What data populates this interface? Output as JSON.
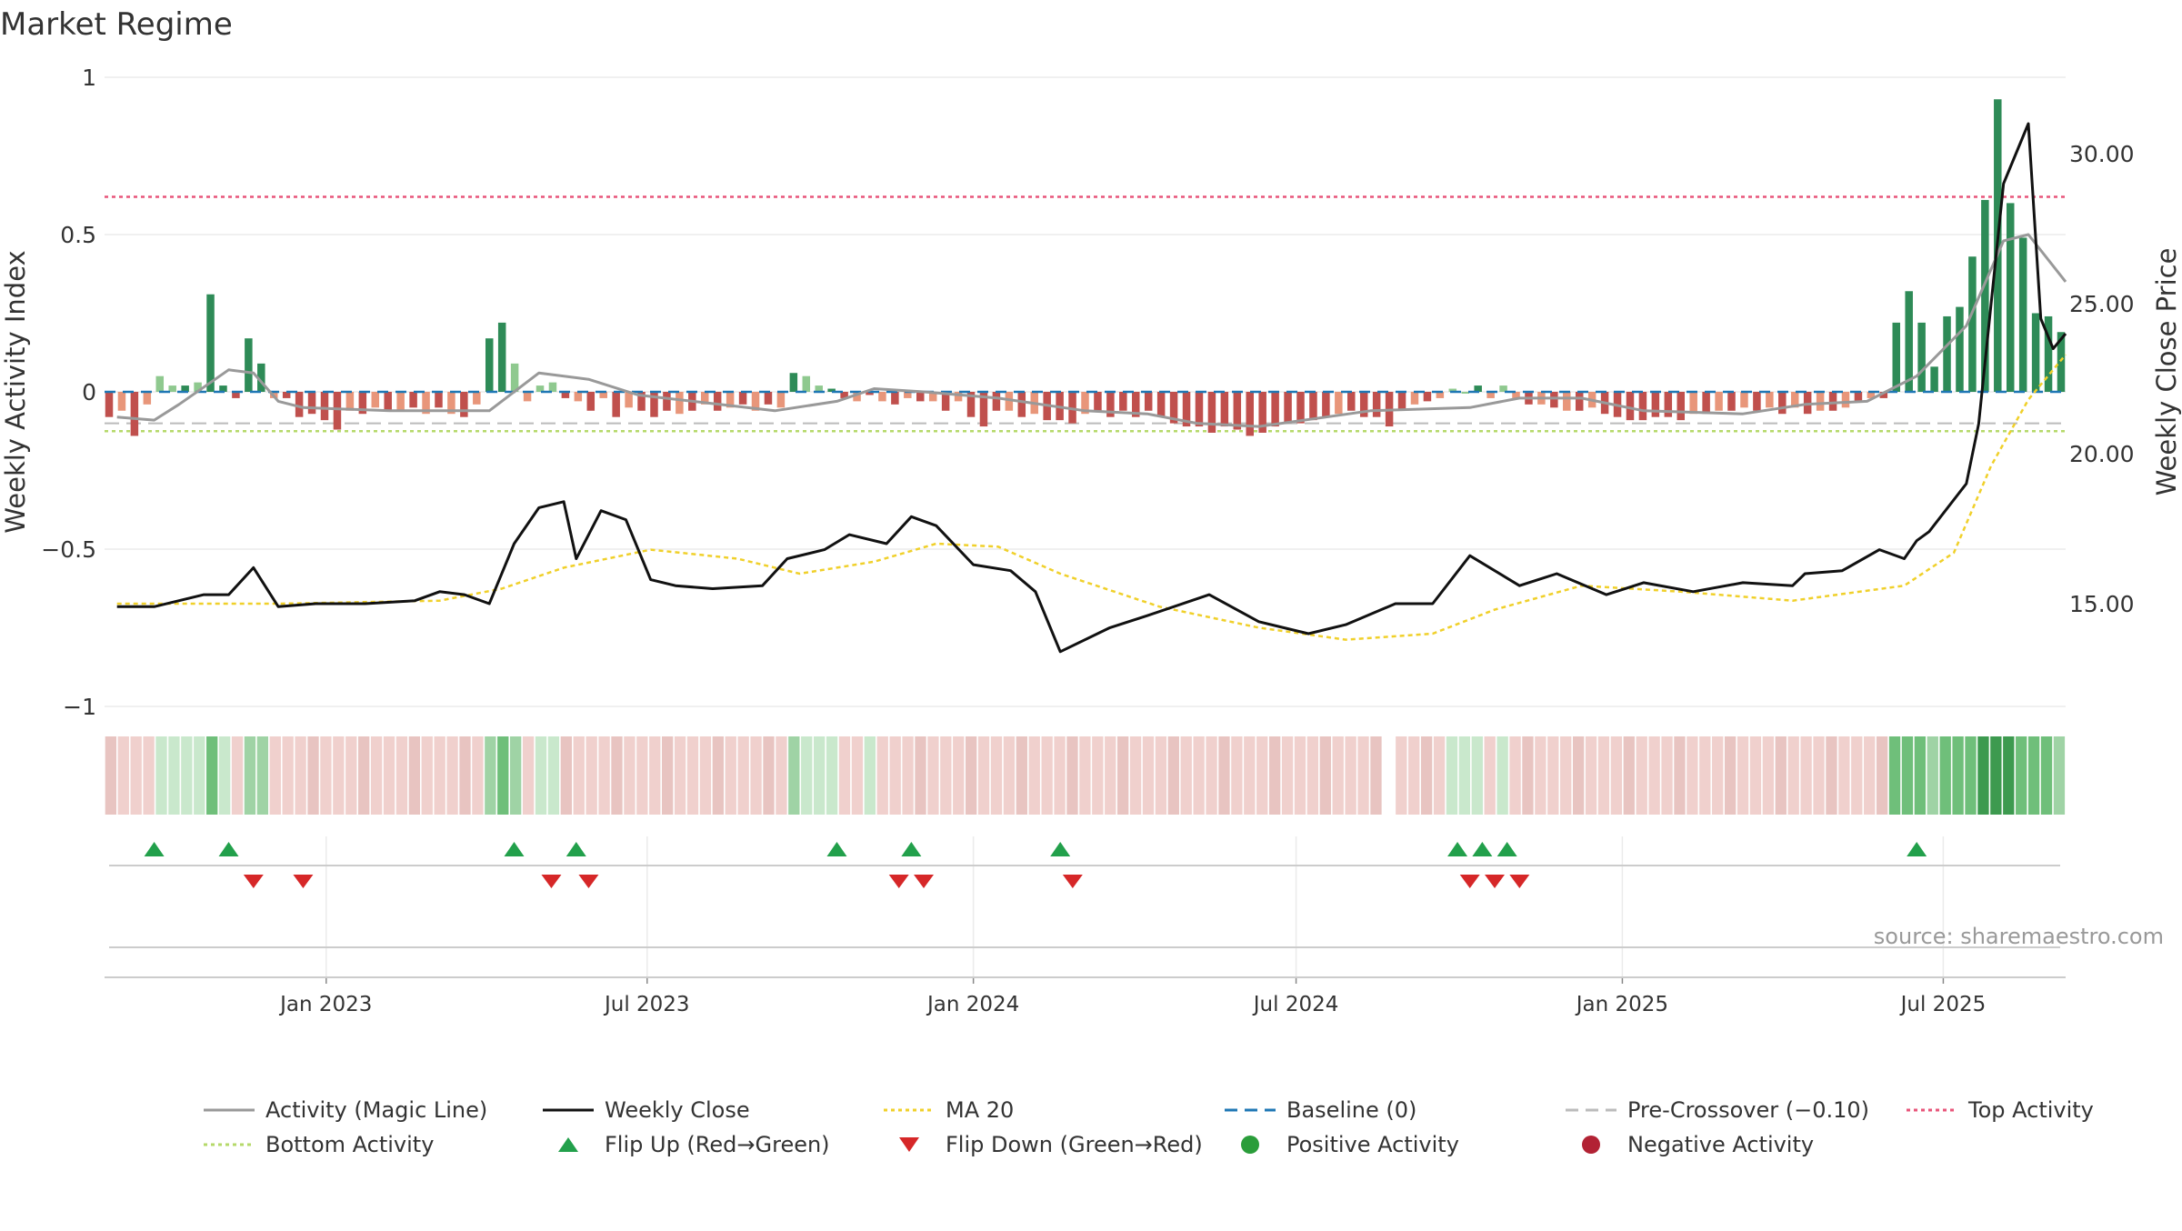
{
  "chart_data": {
    "type": "line",
    "title": "Market Regime",
    "ylabel": "Weekly Activity Index",
    "y2label": "Weekly Close Price",
    "ylim": [
      -1,
      1
    ],
    "y2lim": [
      10,
      33
    ],
    "y_ticks": [
      {
        "v": 1,
        "label": "1"
      },
      {
        "v": 0.5,
        "label": "0.5"
      },
      {
        "v": 0,
        "label": "0"
      },
      {
        "v": -0.5,
        "label": "−0.5"
      },
      {
        "v": -1,
        "label": "−1"
      }
    ],
    "y2_ticks": [
      "15.00",
      "20.00",
      "25.00",
      "30.00"
    ],
    "x_ticks": [
      "Jan 2023",
      "Jul 2023",
      "Jan 2024",
      "Jul 2024",
      "Jan 2025",
      "Jul 2025"
    ],
    "x_range": [
      "2022-08-29",
      "2025-09-08"
    ],
    "grid": true,
    "source": "source: sharemaestro.com",
    "reference_lines": {
      "top_activity": 0.62,
      "bottom_activity": -0.125,
      "pre_crossover": -0.1,
      "baseline": 0
    },
    "colors": {
      "strong_green": "#2e8b57",
      "light_green": "#8fc98f",
      "strong_red": "#c0504d",
      "light_red": "#e8967a",
      "close": "#111111",
      "magic": "#999999",
      "ma": "#f0d02a",
      "top": "#e8557a",
      "bottom": "#b5d96a",
      "baseline": "#1f77b4",
      "pre": "#bbbbbb"
    },
    "flip_up": [
      "2022-09-26",
      "2022-11-07",
      "2023-04-17",
      "2023-05-22",
      "2023-10-16",
      "2023-11-27",
      "2024-02-19",
      "2024-09-30",
      "2024-10-14",
      "2024-10-28",
      "2025-06-16"
    ],
    "flip_down": [
      "2022-11-21",
      "2022-12-19",
      "2023-05-08",
      "2023-05-29",
      "2023-11-20",
      "2023-12-04",
      "2024-02-26",
      "2024-10-07",
      "2024-10-21",
      "2024-11-04"
    ],
    "series": [
      {
        "name": "Weekly Close",
        "points": [
          [
            "2022-09-05",
            14.9
          ],
          [
            "2022-09-26",
            14.9
          ],
          [
            "2022-10-24",
            15.3
          ],
          [
            "2022-11-07",
            15.3
          ],
          [
            "2022-11-21",
            16.2
          ],
          [
            "2022-12-05",
            14.9
          ],
          [
            "2022-12-26",
            15.0
          ],
          [
            "2023-01-23",
            15.0
          ],
          [
            "2023-02-20",
            15.1
          ],
          [
            "2023-03-06",
            15.4
          ],
          [
            "2023-03-20",
            15.3
          ],
          [
            "2023-04-03",
            15.0
          ],
          [
            "2023-04-17",
            17.0
          ],
          [
            "2023-05-01",
            18.2
          ],
          [
            "2023-05-15",
            18.4
          ],
          [
            "2023-05-22",
            16.5
          ],
          [
            "2023-06-05",
            18.1
          ],
          [
            "2023-06-19",
            17.8
          ],
          [
            "2023-07-03",
            15.8
          ],
          [
            "2023-07-17",
            15.6
          ],
          [
            "2023-08-07",
            15.5
          ],
          [
            "2023-09-04",
            15.6
          ],
          [
            "2023-09-18",
            16.5
          ],
          [
            "2023-10-09",
            16.8
          ],
          [
            "2023-10-23",
            17.3
          ],
          [
            "2023-11-13",
            17.0
          ],
          [
            "2023-11-27",
            17.9
          ],
          [
            "2023-12-11",
            17.6
          ],
          [
            "2024-01-01",
            16.3
          ],
          [
            "2024-01-22",
            16.1
          ],
          [
            "2024-02-05",
            15.4
          ],
          [
            "2024-02-19",
            13.4
          ],
          [
            "2024-03-18",
            14.2
          ],
          [
            "2024-04-08",
            14.6
          ],
          [
            "2024-05-13",
            15.3
          ],
          [
            "2024-06-10",
            14.4
          ],
          [
            "2024-07-08",
            14.0
          ],
          [
            "2024-07-29",
            14.3
          ],
          [
            "2024-08-26",
            15.0
          ],
          [
            "2024-09-16",
            15.0
          ],
          [
            "2024-10-07",
            16.6
          ],
          [
            "2024-11-04",
            15.6
          ],
          [
            "2024-11-25",
            16.0
          ],
          [
            "2024-12-23",
            15.3
          ],
          [
            "2025-01-13",
            15.7
          ],
          [
            "2025-02-10",
            15.4
          ],
          [
            "2025-03-10",
            15.7
          ],
          [
            "2025-04-07",
            15.6
          ],
          [
            "2025-04-14",
            16.0
          ],
          [
            "2025-05-05",
            16.1
          ],
          [
            "2025-05-26",
            16.8
          ],
          [
            "2025-06-09",
            16.5
          ],
          [
            "2025-06-16",
            17.1
          ],
          [
            "2025-06-23",
            17.4
          ],
          [
            "2025-07-14",
            19.0
          ],
          [
            "2025-07-21",
            21.0
          ],
          [
            "2025-08-04",
            29.0
          ],
          [
            "2025-08-18",
            31.0
          ],
          [
            "2025-08-25",
            24.5
          ],
          [
            "2025-09-01",
            23.5
          ],
          [
            "2025-09-08",
            24.0
          ]
        ]
      },
      {
        "name": "MA 20",
        "points": [
          [
            "2022-09-05",
            15.0
          ],
          [
            "2022-12-05",
            15.0
          ],
          [
            "2023-03-06",
            15.1
          ],
          [
            "2023-04-10",
            15.5
          ],
          [
            "2023-05-15",
            16.2
          ],
          [
            "2023-07-03",
            16.8
          ],
          [
            "2023-08-21",
            16.5
          ],
          [
            "2023-09-25",
            16.0
          ],
          [
            "2023-11-06",
            16.4
          ],
          [
            "2023-12-11",
            17.0
          ],
          [
            "2024-01-15",
            16.9
          ],
          [
            "2024-02-19",
            16.0
          ],
          [
            "2024-04-15",
            14.9
          ],
          [
            "2024-06-10",
            14.2
          ],
          [
            "2024-07-29",
            13.8
          ],
          [
            "2024-09-16",
            14.0
          ],
          [
            "2024-10-21",
            14.8
          ],
          [
            "2024-12-09",
            15.6
          ],
          [
            "2025-02-03",
            15.4
          ],
          [
            "2025-04-07",
            15.1
          ],
          [
            "2025-06-09",
            15.6
          ],
          [
            "2025-07-07",
            16.7
          ],
          [
            "2025-07-28",
            19.6
          ],
          [
            "2025-08-18",
            21.8
          ],
          [
            "2025-09-08",
            23.3
          ]
        ]
      },
      {
        "name": "Activity (Magic Line)",
        "points": [
          [
            "2022-09-05",
            -0.08
          ],
          [
            "2022-09-26",
            -0.09
          ],
          [
            "2022-10-10",
            -0.04
          ],
          [
            "2022-11-07",
            0.07
          ],
          [
            "2022-11-21",
            0.06
          ],
          [
            "2022-12-05",
            -0.03
          ],
          [
            "2022-12-19",
            -0.05
          ],
          [
            "2023-02-06",
            -0.06
          ],
          [
            "2023-04-03",
            -0.06
          ],
          [
            "2023-05-01",
            0.06
          ],
          [
            "2023-05-29",
            0.04
          ],
          [
            "2023-06-26",
            -0.01
          ],
          [
            "2023-09-11",
            -0.06
          ],
          [
            "2023-10-16",
            -0.03
          ],
          [
            "2023-11-06",
            0.01
          ],
          [
            "2023-12-04",
            0.0
          ],
          [
            "2024-01-15",
            -0.02
          ],
          [
            "2024-03-04",
            -0.06
          ],
          [
            "2024-04-08",
            -0.07
          ],
          [
            "2024-05-06",
            -0.1
          ],
          [
            "2024-06-10",
            -0.11
          ],
          [
            "2024-08-12",
            -0.06
          ],
          [
            "2024-10-07",
            -0.05
          ],
          [
            "2024-11-04",
            -0.02
          ],
          [
            "2024-12-09",
            -0.02
          ],
          [
            "2025-01-13",
            -0.06
          ],
          [
            "2025-03-10",
            -0.07
          ],
          [
            "2025-04-14",
            -0.04
          ],
          [
            "2025-05-19",
            -0.03
          ],
          [
            "2025-06-16",
            0.05
          ],
          [
            "2025-07-14",
            0.21
          ],
          [
            "2025-08-04",
            0.48
          ],
          [
            "2025-08-18",
            0.5
          ],
          [
            "2025-09-08",
            0.35
          ]
        ]
      }
    ],
    "bars": {
      "name": "Weekly Activity Index",
      "values": [
        -0.08,
        -0.06,
        -0.14,
        -0.04,
        0.05,
        0.02,
        0.02,
        0.03,
        0.31,
        0.02,
        -0.02,
        0.17,
        0.09,
        -0.02,
        -0.02,
        -0.08,
        -0.07,
        -0.09,
        -0.12,
        -0.06,
        -0.07,
        -0.05,
        -0.06,
        -0.06,
        -0.05,
        -0.07,
        -0.05,
        -0.07,
        -0.08,
        -0.04,
        0.17,
        0.22,
        0.09,
        -0.03,
        0.02,
        0.03,
        -0.02,
        -0.03,
        -0.06,
        -0.02,
        -0.08,
        -0.05,
        -0.06,
        -0.08,
        -0.06,
        -0.07,
        -0.06,
        -0.04,
        -0.06,
        -0.05,
        -0.04,
        -0.06,
        -0.04,
        -0.05,
        0.06,
        0.05,
        0.02,
        0.01,
        -0.02,
        -0.03,
        -0.01,
        -0.03,
        -0.04,
        -0.02,
        -0.03,
        -0.03,
        -0.06,
        -0.03,
        -0.08,
        -0.11,
        -0.06,
        -0.06,
        -0.08,
        -0.07,
        -0.09,
        -0.09,
        -0.1,
        -0.07,
        -0.06,
        -0.08,
        -0.06,
        -0.08,
        -0.06,
        -0.08,
        -0.1,
        -0.11,
        -0.11,
        -0.13,
        -0.11,
        -0.12,
        -0.14,
        -0.13,
        -0.11,
        -0.1,
        -0.1,
        -0.09,
        -0.08,
        -0.07,
        -0.06,
        -0.08,
        -0.08,
        -0.11,
        -0.06,
        -0.04,
        -0.03,
        -0.02,
        0.01,
        0.0,
        0.02,
        -0.02,
        0.02,
        -0.02,
        -0.04,
        -0.04,
        -0.05,
        -0.06,
        -0.06,
        -0.05,
        -0.07,
        -0.08,
        -0.09,
        -0.09,
        -0.08,
        -0.08,
        -0.09,
        -0.07,
        -0.07,
        -0.06,
        -0.06,
        -0.05,
        -0.06,
        -0.05,
        -0.07,
        -0.05,
        -0.07,
        -0.06,
        -0.06,
        -0.05,
        -0.03,
        -0.02,
        -0.02,
        0.22,
        0.32,
        0.22,
        0.08,
        0.24,
        0.27,
        0.43,
        0.61,
        0.93,
        0.6,
        0.49,
        0.25,
        0.24,
        0.19
      ]
    }
  },
  "legend": [
    {
      "key": "magic",
      "label": "Activity (Magic Line)"
    },
    {
      "key": "close",
      "label": "Weekly Close"
    },
    {
      "key": "ma",
      "label": "MA 20"
    },
    {
      "key": "baseline",
      "label": "Baseline (0)"
    },
    {
      "key": "pre",
      "label": "Pre-Crossover (−0.10)"
    },
    {
      "key": "top",
      "label": "Top Activity"
    },
    {
      "key": "bottom",
      "label": "Bottom Activity"
    },
    {
      "key": "flipup",
      "label": "Flip Up (Red→Green)"
    },
    {
      "key": "flipdown",
      "label": "Flip Down (Green→Red)"
    },
    {
      "key": "posact",
      "label": "Positive Activity"
    },
    {
      "key": "negact",
      "label": "Negative Activity"
    }
  ]
}
